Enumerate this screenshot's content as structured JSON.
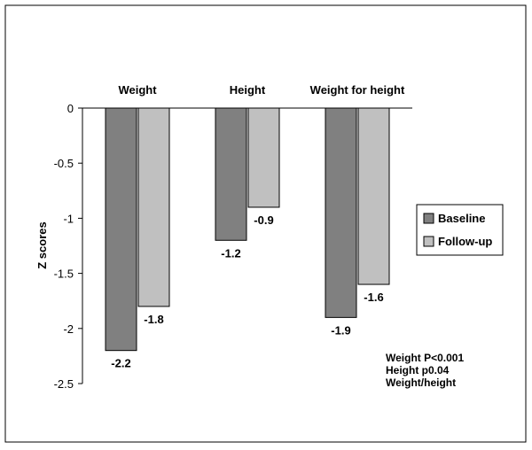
{
  "chart_data": {
    "type": "bar",
    "categories": [
      "Weight",
      "Height",
      "Weight for height"
    ],
    "series": [
      {
        "name": "Baseline",
        "values": [
          -2.2,
          -1.2,
          -1.9
        ],
        "color": "#808080"
      },
      {
        "name": "Follow-up",
        "values": [
          -1.8,
          -0.9,
          -1.6
        ],
        "color": "#c0c0c0"
      }
    ],
    "data_labels": [
      [
        "-2.2",
        "-1.2",
        "-1.9"
      ],
      [
        "-1.8",
        "-0.9",
        "-1.6"
      ]
    ],
    "ylabel": "Z scores",
    "ylim": [
      -2.5,
      0
    ],
    "yticks": [
      0,
      -0.5,
      -1,
      -1.5,
      -2,
      -2.5
    ],
    "ytick_labels": [
      "0",
      "-0.5",
      "-1",
      "-1.5",
      "-2",
      "-2.5"
    ],
    "legend_position": "right",
    "grid": false,
    "annotation_lines": [
      "Weight P<0.001",
      "Height p0.04",
      "Weight/height"
    ]
  }
}
